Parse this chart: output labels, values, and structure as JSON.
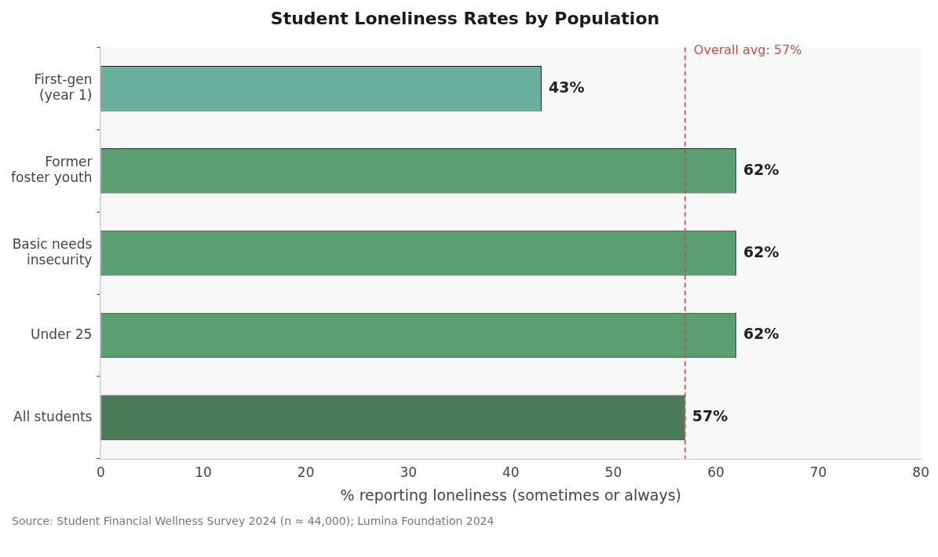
{
  "chart_data": {
    "type": "bar",
    "orientation": "horizontal",
    "title": "Student Loneliness Rates by Population",
    "xlabel": "% reporting loneliness (sometimes or always)",
    "categories": [
      "First-gen (year 1)",
      "Former foster youth",
      "Basic needs insecurity",
      "Under 25",
      "All students"
    ],
    "values": [
      43,
      62,
      62,
      62,
      57
    ],
    "colors": [
      "#6ab09e",
      "#5a9e72",
      "#5a9e72",
      "#5a9e72",
      "#4a7a58"
    ],
    "value_labels": [
      "43%",
      "62%",
      "62%",
      "62%",
      "57%"
    ],
    "xlim": [
      0,
      80
    ],
    "xticks": [
      0,
      10,
      20,
      30,
      40,
      50,
      60,
      70,
      80
    ],
    "grid": false,
    "legend": false,
    "ref_lines": [
      {
        "axis": "x",
        "value": 57,
        "label": "Overall avg: 57%",
        "color": "#c0504d",
        "line_style": "dashed"
      }
    ],
    "annotations": [
      "Source: Student Financial Wellness Survey 2024 (n ≈ 44,000); Lumina Foundation 2024"
    ]
  }
}
